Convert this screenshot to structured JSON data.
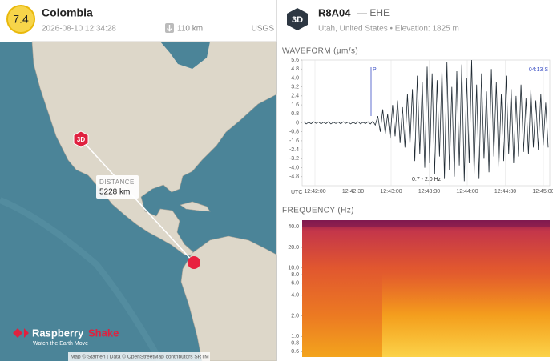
{
  "event": {
    "magnitude": "7.4",
    "region": "Colombia",
    "time": "2026-08-10 12:34:28",
    "depth": "110 km",
    "source": "USGS"
  },
  "map": {
    "station_marker": "3D",
    "distance_label": "DISTANCE",
    "distance": "5228 km",
    "logo_name": "Raspberry",
    "logo_name2": "Shake",
    "logo_tagline": "Watch the Earth Move",
    "attribution": "Map © Stamen | Data © OpenStreetMap contributors SRTM"
  },
  "station": {
    "badge": "3D",
    "code": "R8A04",
    "channel": "— EHE",
    "location": "Utah, United States • Elevation: 1825 m"
  },
  "waveform": {
    "title": "WAVEFORM (µm/s)",
    "ylim": [
      -5.6,
      5.6
    ],
    "yticks": [
      -4.8,
      {
        "value": -4,
        "label": "-4.0"
      },
      -3.2,
      -2.4,
      -1.6,
      -0.8,
      0,
      0.8,
      1.6,
      2.4,
      3.2,
      {
        "value": 4,
        "label": "4.0"
      },
      4.8,
      5.6
    ],
    "xticks": [
      "12:42:00",
      "12:42:30",
      "12:43:00",
      "12:43:30",
      "12:44:00",
      "12:44:30",
      "12:45:00"
    ],
    "x_unit": "UTC",
    "phase_p": "P",
    "phase_s": "04:13  S",
    "filter": "0.7 - 2.0 Hz",
    "values": [
      0.1,
      -0.1,
      0.05,
      -0.08,
      0.1,
      -0.05,
      0.08,
      -0.1,
      0.06,
      -0.07,
      0.1,
      -0.1,
      0.05,
      -0.06,
      0.08,
      -0.09,
      0.1,
      -0.05,
      0.07,
      -0.1,
      0.06,
      -0.08,
      0.1,
      -0.1,
      0.05,
      -0.07,
      0.09,
      -0.1,
      0.15,
      -0.2,
      0.6,
      -0.8,
      1.2,
      -1.0,
      0.8,
      -1.4,
      1.6,
      -1.2,
      2.0,
      -1.8,
      1.4,
      -2.2,
      2.6,
      -2.0,
      3.0,
      -3.4,
      4.2,
      -2.8,
      3.6,
      -4.0,
      5.0,
      -3.6,
      4.4,
      -4.6,
      3.8,
      -3.0,
      4.8,
      -5.0,
      5.4,
      -4.2,
      3.2,
      -4.8,
      4.6,
      -3.8,
      5.2,
      -5.2,
      4.0,
      -3.6,
      5.6,
      -4.6,
      3.4,
      -5.0,
      4.4,
      -3.2,
      2.8,
      -4.4,
      4.8,
      -3.0,
      3.6,
      -4.0,
      2.6,
      -3.4,
      4.2,
      -2.8,
      3.0,
      -3.6,
      2.4,
      -3.0,
      3.4,
      -2.6,
      2.2,
      -2.8,
      3.0,
      -2.2,
      2.0,
      -2.4,
      2.6,
      -2.0,
      1.8,
      -2.2
    ]
  },
  "frequency": {
    "title": "FREQUENCY  (Hz)",
    "log_scale": true,
    "ylim": [
      0.5,
      50
    ],
    "yticks": [
      {
        "value": 40,
        "label": "40.0"
      },
      {
        "value": 20,
        "label": "20.0"
      },
      {
        "value": 10,
        "label": "10.0"
      },
      {
        "value": 8,
        "label": "8.0"
      },
      {
        "value": 6,
        "label": "6.0"
      },
      {
        "value": 4,
        "label": "4.0"
      },
      {
        "value": 2,
        "label": "2.0"
      },
      {
        "value": 1,
        "label": "1.0"
      },
      0.8,
      0.6
    ]
  }
}
